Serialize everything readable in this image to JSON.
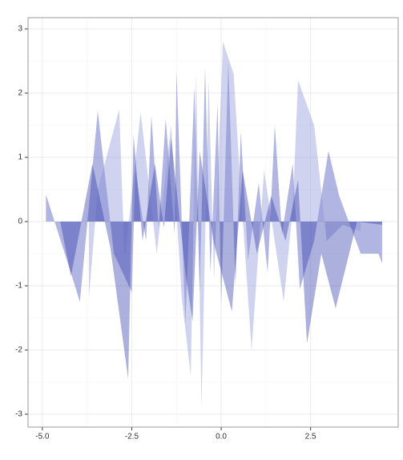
{
  "chart_data": {
    "type": "area",
    "grid": true,
    "alpha": 0.4,
    "xlim": [
      -5.4,
      4.95
    ],
    "ylim": [
      -3.2,
      3.175
    ],
    "xticks": [
      {
        "value": -5,
        "label": "-5.0"
      },
      {
        "value": -2.5,
        "label": "-2.5"
      },
      {
        "value": 0,
        "label": "0.0"
      },
      {
        "value": 2.5,
        "label": "2.5"
      }
    ],
    "yticks": [
      -3,
      -2,
      -1,
      0,
      1,
      2,
      3
    ],
    "series": [
      {
        "color": "#3c46b4",
        "x": [
          -4.9,
          -4.6,
          -4.2,
          -3.95,
          -3.45,
          -3.0,
          -2.5,
          -2.4,
          -2.1,
          -1.95,
          -1.75,
          -1.55,
          -1.3,
          -1.25,
          -1.0,
          -0.75,
          -0.6,
          -0.45,
          -0.3,
          -0.1,
          0.0,
          0.2,
          0.4,
          0.55,
          0.75,
          1.05,
          1.3,
          1.5,
          1.7,
          2.0,
          2.2,
          2.6,
          3.0,
          3.3,
          3.9,
          4.4,
          4.5
        ],
        "values": [
          0.42,
          -0.1,
          -0.8,
          -1.25,
          1.72,
          -0.5,
          -1.1,
          0.8,
          -0.3,
          1.65,
          -0.1,
          1.6,
          -0.2,
          2.35,
          -1.6,
          2.1,
          -1.1,
          2.4,
          -0.8,
          1.85,
          -1.3,
          2.5,
          -1.0,
          1.4,
          -0.6,
          0.6,
          -0.8,
          1.5,
          -0.2,
          0.9,
          -1.05,
          -0.3,
          1.1,
          0.4,
          -0.5,
          -0.5,
          -0.65
        ]
      },
      {
        "color": "#8a92d6",
        "x": [
          -3.7,
          -3.45,
          -2.85,
          -2.7,
          -2.25,
          -1.8,
          -1.4,
          -1.1,
          -0.85,
          -0.7,
          -0.55,
          -0.35,
          -0.2,
          0.05,
          0.35,
          0.5,
          0.85,
          1.2,
          1.75,
          2.0,
          2.15,
          2.6,
          2.95,
          3.4,
          3.9
        ],
        "values": [
          -1.2,
          0.5,
          1.75,
          -0.6,
          1.7,
          -0.5,
          1.5,
          -1.2,
          -2.4,
          2.3,
          -2.9,
          2.2,
          -0.9,
          2.8,
          2.3,
          0.9,
          -2.0,
          0.8,
          -1.25,
          0.2,
          2.2,
          1.5,
          -0.3,
          -0.05,
          -0.15
        ]
      },
      {
        "color": "#2f3aa8",
        "x": [
          -4.5,
          -4.2,
          -3.6,
          -3.1,
          -2.6,
          -2.45,
          -2.2,
          -1.85,
          -1.6,
          -1.4,
          -1.0,
          -0.8,
          -0.6,
          -0.2,
          0.3,
          0.6,
          1.0,
          1.4,
          1.8,
          2.15,
          2.4,
          2.8,
          3.2,
          3.8,
          4.5
        ],
        "values": [
          0.0,
          -0.85,
          0.9,
          -0.4,
          -2.45,
          1.35,
          -0.3,
          0.9,
          -0.1,
          1.3,
          -0.8,
          -1.55,
          1.1,
          -0.35,
          -1.4,
          0.8,
          -0.5,
          0.4,
          -0.3,
          0.65,
          -1.9,
          -0.5,
          -1.35,
          0.0,
          -0.05
        ]
      }
    ]
  }
}
